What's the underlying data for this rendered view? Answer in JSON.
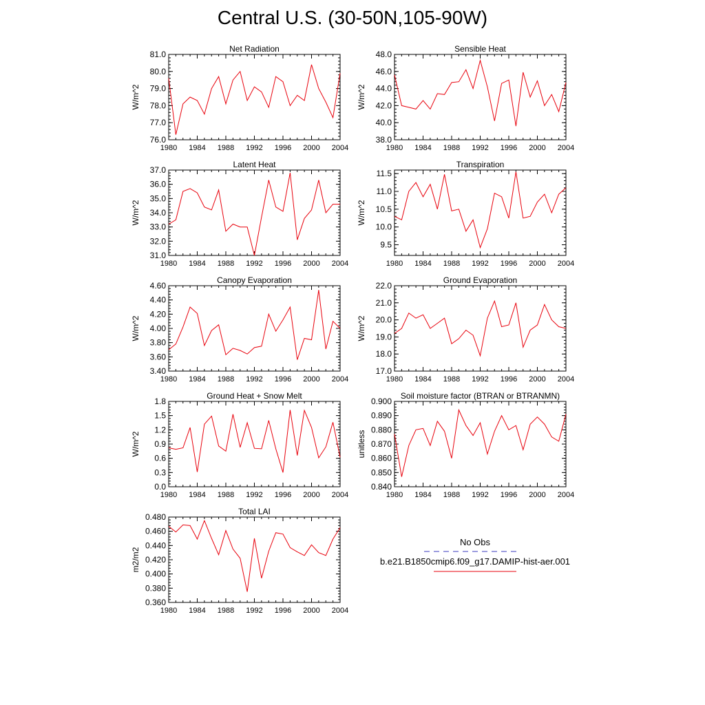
{
  "title": "Central U.S. (30-50N,105-90W)",
  "line_color": "#e8000b",
  "obs_color": "#3b3bbf",
  "legend": {
    "obs_label": "No Obs",
    "model_label": "b.e21.B1850cmip6.f09_g17.DAMIP-hist-aer.001"
  },
  "chart_data": [
    {
      "type": "line",
      "title": "Net Radiation",
      "ylabel": "W/m^2",
      "xlim": [
        1980,
        2004
      ],
      "ylim": [
        76.0,
        81.0
      ],
      "xticks": [
        1980,
        1984,
        1988,
        1992,
        1996,
        2000,
        2004
      ],
      "yticks": [
        "76.0",
        "77.0",
        "78.0",
        "79.0",
        "80.0",
        "81.0"
      ],
      "x": [
        1980,
        1981,
        1982,
        1983,
        1984,
        1985,
        1986,
        1987,
        1988,
        1989,
        1990,
        1991,
        1992,
        1993,
        1994,
        1995,
        1996,
        1997,
        1998,
        1999,
        2000,
        2001,
        2002,
        2003,
        2004
      ],
      "values": [
        79.6,
        76.3,
        78.1,
        78.5,
        78.3,
        77.5,
        79.0,
        79.7,
        78.1,
        79.5,
        80.0,
        78.3,
        79.1,
        78.8,
        77.9,
        79.7,
        79.4,
        78.0,
        78.6,
        78.3,
        80.4,
        79.0,
        78.2,
        77.3,
        79.9
      ]
    },
    {
      "type": "line",
      "title": "Sensible Heat",
      "ylabel": "W/m^2",
      "xlim": [
        1980,
        2004
      ],
      "ylim": [
        38.0,
        48.0
      ],
      "xticks": [
        1980,
        1984,
        1988,
        1992,
        1996,
        2000,
        2004
      ],
      "yticks": [
        "38.0",
        "40.0",
        "42.0",
        "44.0",
        "46.0",
        "48.0"
      ],
      "x": [
        1980,
        1981,
        1982,
        1983,
        1984,
        1985,
        1986,
        1987,
        1988,
        1989,
        1990,
        1991,
        1992,
        1993,
        1994,
        1995,
        1996,
        1997,
        1998,
        1999,
        2000,
        2001,
        2002,
        2003,
        2004
      ],
      "values": [
        45.6,
        42.0,
        41.8,
        41.6,
        42.6,
        41.6,
        43.4,
        43.3,
        44.7,
        44.8,
        46.2,
        44.0,
        47.3,
        44.2,
        40.2,
        44.6,
        45.0,
        39.6,
        45.9,
        43.0,
        44.9,
        42.0,
        43.3,
        41.3,
        44.7
      ]
    },
    {
      "type": "line",
      "title": "Latent Heat",
      "ylabel": "W/m^2",
      "xlim": [
        1980,
        2004
      ],
      "ylim": [
        31.0,
        37.0
      ],
      "xticks": [
        1980,
        1984,
        1988,
        1992,
        1996,
        2000,
        2004
      ],
      "yticks": [
        "31.0",
        "32.0",
        "33.0",
        "34.0",
        "35.0",
        "36.0",
        "37.0"
      ],
      "x": [
        1980,
        1981,
        1982,
        1983,
        1984,
        1985,
        1986,
        1987,
        1988,
        1989,
        1990,
        1991,
        1992,
        1993,
        1994,
        1995,
        1996,
        1997,
        1998,
        1999,
        2000,
        2001,
        2002,
        2003,
        2004
      ],
      "values": [
        33.2,
        33.5,
        35.5,
        35.7,
        35.4,
        34.4,
        34.2,
        35.6,
        32.7,
        33.2,
        33.0,
        33.0,
        31.0,
        33.7,
        36.3,
        34.4,
        34.1,
        36.8,
        32.1,
        33.6,
        34.2,
        36.3,
        34.0,
        34.6,
        34.6
      ]
    },
    {
      "type": "line",
      "title": "Transpiration",
      "ylabel": "W/m^2",
      "xlim": [
        1980,
        2004
      ],
      "ylim": [
        9.2,
        11.6
      ],
      "xticks": [
        1980,
        1984,
        1988,
        1992,
        1996,
        2000,
        2004
      ],
      "yticks": [
        "9.5",
        "10.0",
        "10.5",
        "11.0",
        "11.5"
      ],
      "x": [
        1980,
        1981,
        1982,
        1983,
        1984,
        1985,
        1986,
        1987,
        1988,
        1989,
        1990,
        1991,
        1992,
        1993,
        1994,
        1995,
        1996,
        1997,
        1998,
        1999,
        2000,
        2001,
        2002,
        2003,
        2004
      ],
      "values": [
        10.3,
        10.2,
        11.0,
        11.25,
        10.85,
        11.2,
        10.5,
        11.48,
        10.45,
        10.5,
        9.88,
        10.2,
        9.42,
        9.95,
        10.95,
        10.85,
        10.25,
        11.55,
        10.25,
        10.3,
        10.7,
        10.92,
        10.4,
        10.92,
        11.1
      ]
    },
    {
      "type": "line",
      "title": "Canopy Evaporation",
      "ylabel": "W/m^2",
      "xlim": [
        1980,
        2004
      ],
      "ylim": [
        3.4,
        4.6
      ],
      "xticks": [
        1980,
        1984,
        1988,
        1992,
        1996,
        2000,
        2004
      ],
      "yticks": [
        "3.40",
        "3.60",
        "3.80",
        "4.00",
        "4.20",
        "4.40",
        "4.60"
      ],
      "x": [
        1980,
        1981,
        1982,
        1983,
        1984,
        1985,
        1986,
        1987,
        1988,
        1989,
        1990,
        1991,
        1992,
        1993,
        1994,
        1995,
        1996,
        1997,
        1998,
        1999,
        2000,
        2001,
        2002,
        2003,
        2004
      ],
      "values": [
        3.7,
        3.78,
        4.02,
        4.3,
        4.21,
        3.76,
        3.97,
        4.05,
        3.63,
        3.72,
        3.69,
        3.64,
        3.73,
        3.75,
        4.2,
        3.96,
        4.12,
        4.3,
        3.56,
        3.86,
        3.84,
        4.54,
        3.71,
        4.1,
        4.0
      ]
    },
    {
      "type": "line",
      "title": "Ground Evaporation",
      "ylabel": "W/m^2",
      "xlim": [
        1980,
        2004
      ],
      "ylim": [
        17.0,
        22.0
      ],
      "xticks": [
        1980,
        1984,
        1988,
        1992,
        1996,
        2000,
        2004
      ],
      "yticks": [
        "17.0",
        "18.0",
        "19.0",
        "20.0",
        "21.0",
        "22.0"
      ],
      "x": [
        1980,
        1981,
        1982,
        1983,
        1984,
        1985,
        1986,
        1987,
        1988,
        1989,
        1990,
        1991,
        1992,
        1993,
        1994,
        1995,
        1996,
        1997,
        1998,
        1999,
        2000,
        2001,
        2002,
        2003,
        2004
      ],
      "values": [
        19.2,
        19.5,
        20.4,
        20.1,
        20.3,
        19.5,
        19.8,
        20.1,
        18.6,
        18.9,
        19.4,
        19.1,
        17.9,
        20.1,
        21.1,
        19.6,
        19.7,
        21.0,
        18.4,
        19.4,
        19.7,
        20.9,
        20.0,
        19.6,
        19.5
      ]
    },
    {
      "type": "line",
      "title": "Ground Heat + Snow Melt",
      "ylabel": "W/m^2",
      "xlim": [
        1980,
        2004
      ],
      "ylim": [
        0.0,
        1.8
      ],
      "xticks": [
        1980,
        1984,
        1988,
        1992,
        1996,
        2000,
        2004
      ],
      "yticks": [
        "0.0",
        "0.3",
        "0.6",
        "0.9",
        "1.2",
        "1.5",
        "1.8"
      ],
      "x": [
        1980,
        1981,
        1982,
        1983,
        1984,
        1985,
        1986,
        1987,
        1988,
        1989,
        1990,
        1991,
        1992,
        1993,
        1994,
        1995,
        1996,
        1997,
        1998,
        1999,
        2000,
        2001,
        2002,
        2003,
        2004
      ],
      "values": [
        0.82,
        0.79,
        0.82,
        1.25,
        0.31,
        1.32,
        1.49,
        0.86,
        0.75,
        1.53,
        0.83,
        1.35,
        0.81,
        0.8,
        1.4,
        0.8,
        0.3,
        1.62,
        0.66,
        1.61,
        1.25,
        0.61,
        0.84,
        1.36,
        0.62
      ]
    },
    {
      "type": "line",
      "title": "Soil moisture factor (BTRAN or BTRANMN)",
      "ylabel": "unitless",
      "xlim": [
        1980,
        2004
      ],
      "ylim": [
        0.84,
        0.9
      ],
      "xticks": [
        1980,
        1984,
        1988,
        1992,
        1996,
        2000,
        2004
      ],
      "yticks": [
        "0.840",
        "0.850",
        "0.860",
        "0.870",
        "0.880",
        "0.890",
        "0.900"
      ],
      "x": [
        1980,
        1981,
        1982,
        1983,
        1984,
        1985,
        1986,
        1987,
        1988,
        1989,
        1990,
        1991,
        1992,
        1993,
        1994,
        1995,
        1996,
        1997,
        1998,
        1999,
        2000,
        2001,
        2002,
        2003,
        2004
      ],
      "values": [
        0.877,
        0.847,
        0.869,
        0.88,
        0.881,
        0.869,
        0.886,
        0.879,
        0.86,
        0.894,
        0.883,
        0.876,
        0.885,
        0.863,
        0.879,
        0.89,
        0.88,
        0.883,
        0.866,
        0.884,
        0.889,
        0.884,
        0.875,
        0.872,
        0.891
      ]
    },
    {
      "type": "line",
      "title": "Total LAI",
      "ylabel": "m2/m2",
      "xlim": [
        1980,
        2004
      ],
      "ylim": [
        0.36,
        0.48
      ],
      "xticks": [
        1980,
        1984,
        1988,
        1992,
        1996,
        2000,
        2004
      ],
      "yticks": [
        "0.360",
        "0.380",
        "0.400",
        "0.420",
        "0.440",
        "0.460",
        "0.480"
      ],
      "x": [
        1980,
        1981,
        1982,
        1983,
        1984,
        1985,
        1986,
        1987,
        1988,
        1989,
        1990,
        1991,
        1992,
        1993,
        1994,
        1995,
        1996,
        1997,
        1998,
        1999,
        2000,
        2001,
        2002,
        2003,
        2004
      ],
      "values": [
        0.467,
        0.459,
        0.469,
        0.468,
        0.449,
        0.475,
        0.45,
        0.427,
        0.461,
        0.435,
        0.422,
        0.375,
        0.45,
        0.394,
        0.432,
        0.458,
        0.456,
        0.437,
        0.431,
        0.426,
        0.441,
        0.43,
        0.426,
        0.449,
        0.465
      ]
    }
  ]
}
